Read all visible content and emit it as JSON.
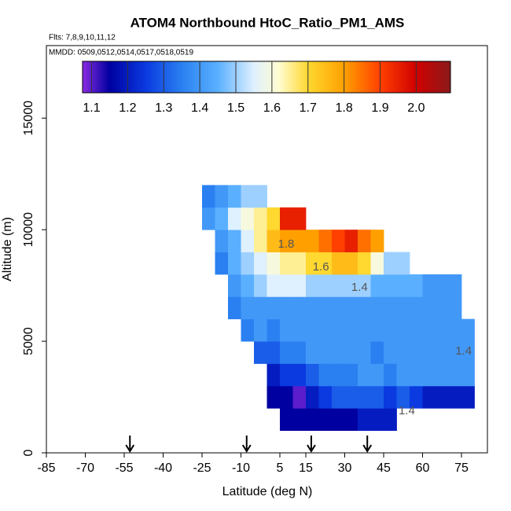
{
  "chart_data": {
    "type": "heatmap",
    "title": "ATOM4 Northbound HtoC_Ratio_PM1_AMS",
    "subtitle": "Flts: 7,8,9,10,11,12",
    "annotation": "MMDD: 0509,0512,0514,0517,0518,0519",
    "x_label": "Latitude (deg N)",
    "y_label": "Altitude (m)",
    "xlim": [
      -85,
      85
    ],
    "ylim": [
      0,
      18250
    ],
    "xticks": [
      -85,
      -70,
      -55,
      -40,
      -25,
      -10,
      5,
      15,
      30,
      45,
      60,
      75
    ],
    "yticks": [
      0,
      5000,
      10000,
      15000
    ],
    "lat_edges": [
      -25,
      -20,
      -15,
      -10,
      -5,
      0,
      5,
      10,
      15,
      20,
      25,
      30,
      35,
      40,
      45,
      50,
      55,
      60,
      65,
      70,
      75,
      80
    ],
    "alt_edges": [
      1000,
      2000,
      3000,
      4000,
      5000,
      6000,
      7000,
      8000,
      9000,
      10000,
      11000,
      12000
    ],
    "values": [
      [
        null,
        null,
        null,
        null,
        null,
        null,
        1.15,
        1.15,
        1.15,
        1.15,
        1.15,
        1.15,
        1.2,
        1.2,
        1.2,
        null,
        null,
        null,
        null,
        null,
        null
      ],
      [
        null,
        null,
        null,
        null,
        null,
        1.15,
        1.15,
        1.1,
        1.2,
        1.25,
        1.3,
        1.3,
        1.3,
        1.3,
        1.25,
        1.3,
        1.25,
        1.2,
        1.2,
        1.2,
        1.2
      ],
      [
        null,
        null,
        null,
        null,
        null,
        1.2,
        1.25,
        1.25,
        1.3,
        1.35,
        1.35,
        1.35,
        1.4,
        1.4,
        1.35,
        1.4,
        1.4,
        1.4,
        1.4,
        1.4,
        1.4
      ],
      [
        null,
        null,
        null,
        null,
        1.3,
        1.3,
        1.35,
        1.35,
        1.4,
        1.4,
        1.4,
        1.4,
        1.4,
        1.35,
        1.4,
        1.4,
        1.4,
        1.4,
        1.4,
        1.4,
        1.4
      ],
      [
        null,
        null,
        null,
        1.35,
        1.4,
        1.35,
        1.4,
        1.4,
        1.4,
        1.4,
        1.4,
        1.4,
        1.4,
        1.4,
        1.4,
        1.4,
        1.4,
        1.4,
        1.4,
        1.4,
        1.4
      ],
      [
        null,
        null,
        1.35,
        1.4,
        1.4,
        1.4,
        1.4,
        1.4,
        1.4,
        1.4,
        1.4,
        1.4,
        1.4,
        1.4,
        1.4,
        1.4,
        1.4,
        1.4,
        1.4,
        1.4,
        null
      ],
      [
        null,
        null,
        1.4,
        1.45,
        1.5,
        1.55,
        1.55,
        1.55,
        1.5,
        1.5,
        1.5,
        1.5,
        1.5,
        1.45,
        1.45,
        1.45,
        1.45,
        1.4,
        1.4,
        1.4,
        null
      ],
      [
        null,
        1.35,
        1.45,
        1.5,
        1.55,
        1.6,
        1.65,
        1.65,
        1.7,
        1.7,
        1.75,
        1.75,
        1.7,
        1.6,
        1.5,
        1.5,
        null,
        null,
        null,
        null,
        null
      ],
      [
        null,
        1.4,
        1.45,
        1.55,
        1.65,
        1.75,
        1.8,
        1.8,
        1.8,
        1.85,
        1.9,
        1.95,
        1.85,
        1.8,
        null,
        null,
        null,
        null,
        null,
        null,
        null
      ],
      [
        1.4,
        1.45,
        1.55,
        1.6,
        1.65,
        1.7,
        1.95,
        1.95,
        null,
        null,
        null,
        null,
        null,
        null,
        null,
        null,
        null,
        null,
        null,
        null,
        null
      ],
      [
        1.35,
        1.4,
        1.45,
        1.5,
        1.5,
        null,
        null,
        null,
        null,
        null,
        null,
        null,
        null,
        null,
        null,
        null,
        null,
        null,
        null,
        null,
        null
      ]
    ],
    "colorscale": [
      [
        1.075,
        "#8a2be2"
      ],
      [
        1.15,
        "#0000a0"
      ],
      [
        1.25,
        "#0a3ae0"
      ],
      [
        1.35,
        "#2a80f0"
      ],
      [
        1.45,
        "#5ab0ff"
      ],
      [
        1.55,
        "#dff0ff"
      ],
      [
        1.62,
        "#fffcd0"
      ],
      [
        1.7,
        "#ffd830"
      ],
      [
        1.8,
        "#ffa000"
      ],
      [
        1.9,
        "#ff4000"
      ],
      [
        2.0,
        "#d00000"
      ],
      [
        2.095,
        "#8b1a1a"
      ]
    ],
    "colorbar_lim": [
      1.075,
      2.095
    ],
    "colorbar_ticks": [
      1.1,
      1.2,
      1.3,
      1.4,
      1.5,
      1.6,
      1.7,
      1.8,
      1.9,
      {
        "value": 2,
        "label": "2.0"
      }
    ],
    "contour_labels": [
      {
        "text": "1.8",
        "lat": 7.4,
        "alt": 9330
      },
      {
        "text": "1.6",
        "lat": 20.8,
        "alt": 8310
      },
      {
        "text": "1.4",
        "lat": 35.7,
        "alt": 7390
      },
      {
        "text": "1.4",
        "lat": 75.8,
        "alt": 4540
      },
      {
        "text": "1.4",
        "lat": 53.9,
        "alt": 1870
      }
    ],
    "arrows_lat": [
      -52.8,
      -7.8,
      17.1,
      38.7
    ]
  }
}
